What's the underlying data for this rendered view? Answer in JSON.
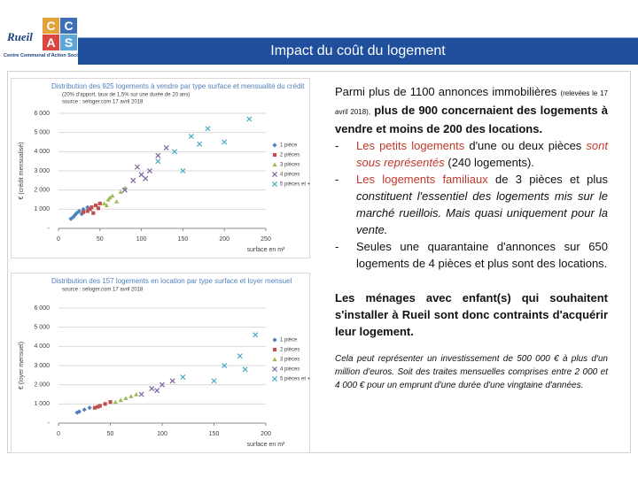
{
  "header": {
    "logo_letters": [
      "C",
      "C",
      "A",
      "S"
    ],
    "logo_town": "Rueil",
    "logo_caption": "Centre Communal d'Action Sociale",
    "title": "Impact du coût du logement"
  },
  "text": {
    "intro": [
      "Parmi plus de 1100 annonces immobilières",
      "(relevées le 17 avril 2018),",
      "plus de 900 concernaient des logements à vendre et moins de 200 des locations."
    ],
    "bullets": [
      [
        "-",
        "Les petits logements",
        "d'une ou deux pièces",
        "sont sous représentés",
        "(240 logements)."
      ],
      [
        "-",
        "Les logements familiaux",
        "de 3 pièces et plus",
        "constituent l'essentiel des logements mis sur le marché rueillois. Mais quasi uniquement pour la vente."
      ],
      [
        "-",
        "Seules une quarantaine d'annonces sur 650 logements de 4 pièces et plus sont des locations."
      ]
    ],
    "conclusion": "Les ménages avec enfant(s) qui souhaitent s'installer à Rueil sont donc contraints d'acquérir leur logement.",
    "note": "Cela peut représenter un investissement de 500 000 € à plus d'un million d'euros. Soit des traites mensuelles comprises entre 2 000 et 4 000 € pour un emprunt d'une durée d'une vingtaine d'années."
  },
  "chart_data": [
    {
      "type": "scatter",
      "title": "Distribution des 925 logements à vendre par type surface et mensualité du crédit",
      "subtitle": "(20% d'apport, taux de 1,5% sur une durée de 20 ans)",
      "source": "source : seloger.com 17 avril 2018",
      "y_label": "€ (crédit mensualisé)",
      "x_label": "surface en m²",
      "xlim": [
        0,
        250
      ],
      "xticks": [
        0,
        50,
        100,
        150,
        200,
        250
      ],
      "ylim": [
        0,
        6000
      ],
      "yticks": [
        {
          "value": 0,
          "label": "-"
        },
        {
          "value": 1000,
          "label": "1 000"
        },
        {
          "value": 2000,
          "label": "2 000"
        },
        {
          "value": 3000,
          "label": "3 000"
        },
        {
          "value": 4000,
          "label": "4 000"
        },
        {
          "value": 5000,
          "label": "5 000"
        },
        {
          "value": 6000,
          "label": "6 000"
        }
      ],
      "grid": true,
      "legend": "right",
      "series": [
        {
          "name": "1 pièce",
          "color": "#4f81bd",
          "marker": "diamond",
          "x": [
            20,
            25,
            18,
            30,
            22,
            28,
            15,
            35
          ],
          "values": [
            700,
            900,
            600,
            1000,
            800,
            750,
            500,
            1100
          ]
        },
        {
          "name": "2 pièces",
          "color": "#c0504d",
          "marker": "square",
          "x": [
            35,
            40,
            45,
            38,
            50,
            42,
            30,
            48
          ],
          "values": [
            900,
            1100,
            1200,
            1000,
            1300,
            800,
            850,
            1050
          ]
        },
        {
          "name": "3 pièces",
          "color": "#9bbb59",
          "marker": "triangle",
          "x": [
            55,
            60,
            65,
            70,
            58,
            75,
            62,
            80
          ],
          "values": [
            1300,
            1500,
            1700,
            1400,
            1200,
            1900,
            1600,
            2100
          ]
        },
        {
          "name": "4 pièces",
          "color": "#8064a2",
          "marker": "cross",
          "x": [
            80,
            90,
            100,
            95,
            110,
            120,
            130,
            105
          ],
          "values": [
            2000,
            2500,
            2800,
            3200,
            3000,
            3800,
            4200,
            2600
          ]
        },
        {
          "name": "5 pièces et +",
          "color": "#4bacc6",
          "marker": "cross",
          "x": [
            120,
            140,
            160,
            180,
            200,
            230,
            150,
            170
          ],
          "values": [
            3500,
            4000,
            4800,
            5200,
            4500,
            5700,
            3000,
            4400
          ]
        }
      ]
    },
    {
      "type": "scatter",
      "title": "Distribution des 157 logements en location par type surface et loyer mensuel",
      "source": "source : seloger.com 17 avril 2018",
      "y_label": "€ (loyer mensuel)",
      "x_label": "surface en m²",
      "xlim": [
        0,
        200
      ],
      "xticks": [
        0,
        50,
        100,
        150,
        200
      ],
      "ylim": [
        0,
        6000
      ],
      "yticks": [
        {
          "value": 0,
          "label": "-"
        },
        {
          "value": 1000,
          "label": "1 000"
        },
        {
          "value": 2000,
          "label": "2 000"
        },
        {
          "value": 3000,
          "label": "3 000"
        },
        {
          "value": 4000,
          "label": "4 000"
        },
        {
          "value": 5000,
          "label": "5 000"
        },
        {
          "value": 6000,
          "label": "6 000"
        }
      ],
      "grid": true,
      "legend": "right",
      "series": [
        {
          "name": "1 pièce",
          "color": "#4f81bd",
          "marker": "diamond",
          "x": [
            20,
            25,
            30,
            18
          ],
          "values": [
            600,
            700,
            800,
            550
          ]
        },
        {
          "name": "2 pièces",
          "color": "#c0504d",
          "marker": "square",
          "x": [
            35,
            40,
            45,
            50,
            38
          ],
          "values": [
            800,
            900,
            1000,
            1100,
            850
          ]
        },
        {
          "name": "3 pièces",
          "color": "#9bbb59",
          "marker": "triangle",
          "x": [
            55,
            60,
            70,
            65,
            75
          ],
          "values": [
            1100,
            1200,
            1400,
            1300,
            1500
          ]
        },
        {
          "name": "4 pièces",
          "color": "#8064a2",
          "marker": "cross",
          "x": [
            80,
            90,
            100,
            110,
            95
          ],
          "values": [
            1500,
            1800,
            2000,
            2200,
            1700
          ]
        },
        {
          "name": "5 pièces et +",
          "color": "#4bacc6",
          "marker": "cross",
          "x": [
            120,
            150,
            180,
            190,
            160,
            175
          ],
          "values": [
            2400,
            2200,
            2800,
            4600,
            3000,
            3500
          ]
        }
      ]
    }
  ]
}
